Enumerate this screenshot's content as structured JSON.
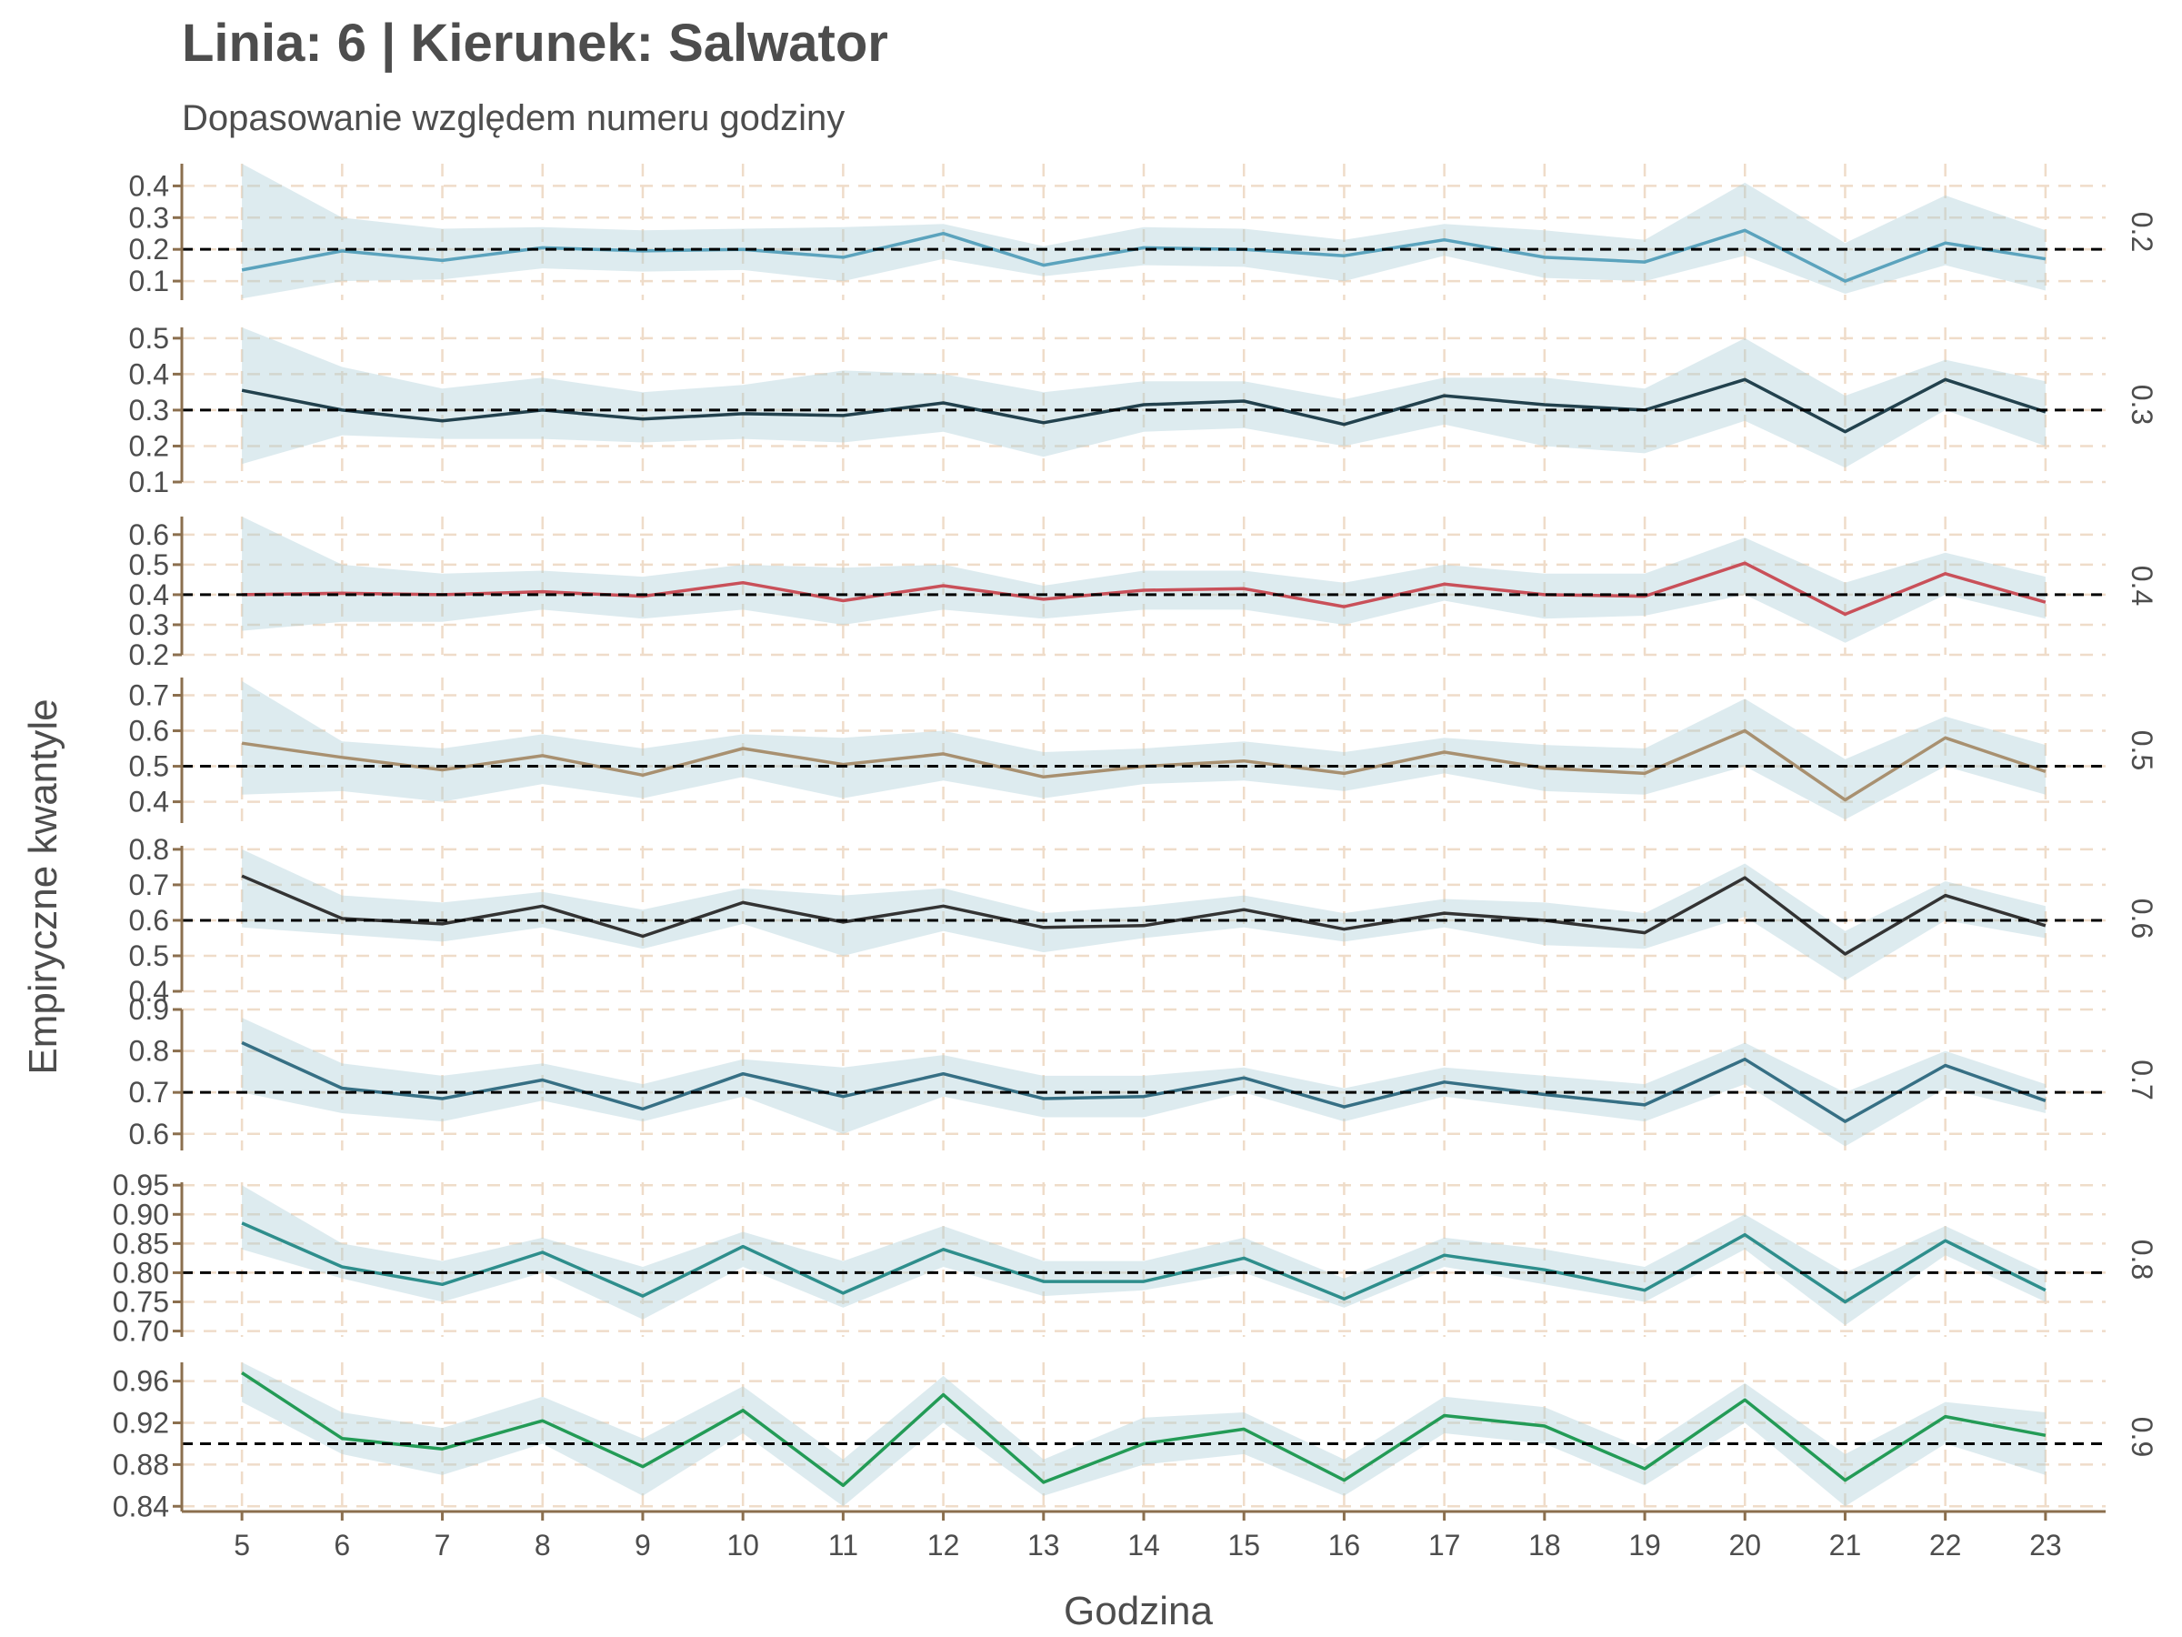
{
  "chart_data": {
    "type": "line",
    "title": "Linia: 6 | Kierunek: Salwator",
    "subtitle": "Dopasowanie względem numeru godziny",
    "xlabel": "Godzina",
    "ylabel": "Empiryczne kwantyle",
    "x": [
      5,
      6,
      7,
      8,
      9,
      10,
      11,
      12,
      13,
      14,
      15,
      16,
      17,
      18,
      19,
      20,
      21,
      22,
      23
    ],
    "xlim": [
      4.4,
      23.6
    ],
    "grid": true,
    "colors": {
      "ribbon": "#a9cdd6",
      "grid": "#efdcc9",
      "axis": "#8b6f4e",
      "reference": "#000000",
      "text": "#4d4d4d"
    },
    "panels": [
      {
        "label": "0.2",
        "reference": 0.2,
        "ylim": [
          0.04,
          0.47
        ],
        "color": "#5ba3bd",
        "yticks": [
          0.1,
          0.2,
          0.3,
          0.4
        ],
        "ytick_labels": [
          "0.1",
          "0.2",
          "0.3",
          "0.4"
        ],
        "values": [
          0.135,
          0.195,
          0.165,
          0.205,
          0.195,
          0.2,
          0.175,
          0.25,
          0.15,
          0.205,
          0.2,
          0.18,
          0.23,
          0.175,
          0.16,
          0.26,
          0.1,
          0.22,
          0.17
        ],
        "lower": [
          0.045,
          0.1,
          0.105,
          0.14,
          0.13,
          0.135,
          0.1,
          0.17,
          0.115,
          0.15,
          0.145,
          0.1,
          0.18,
          0.11,
          0.1,
          0.18,
          0.06,
          0.15,
          0.07
        ],
        "upper": [
          0.47,
          0.3,
          0.265,
          0.27,
          0.26,
          0.265,
          0.27,
          0.28,
          0.21,
          0.27,
          0.265,
          0.23,
          0.28,
          0.26,
          0.23,
          0.41,
          0.22,
          0.37,
          0.26
        ]
      },
      {
        "label": "0.3",
        "reference": 0.3,
        "ylim": [
          0.1,
          0.53
        ],
        "color": "#22414d",
        "yticks": [
          0.1,
          0.2,
          0.3,
          0.4,
          0.5
        ],
        "ytick_labels": [
          "0.1",
          "0.2",
          "0.3",
          "0.4",
          "0.5"
        ],
        "values": [
          0.355,
          0.3,
          0.27,
          0.3,
          0.275,
          0.29,
          0.285,
          0.32,
          0.265,
          0.315,
          0.325,
          0.26,
          0.34,
          0.315,
          0.3,
          0.385,
          0.24,
          0.385,
          0.295
        ],
        "lower": [
          0.15,
          0.23,
          0.22,
          0.22,
          0.21,
          0.22,
          0.21,
          0.24,
          0.17,
          0.24,
          0.25,
          0.2,
          0.26,
          0.2,
          0.18,
          0.27,
          0.14,
          0.3,
          0.2
        ],
        "upper": [
          0.53,
          0.42,
          0.36,
          0.39,
          0.35,
          0.37,
          0.41,
          0.4,
          0.35,
          0.38,
          0.38,
          0.33,
          0.39,
          0.39,
          0.36,
          0.5,
          0.34,
          0.44,
          0.38
        ]
      },
      {
        "label": "0.4",
        "reference": 0.4,
        "ylim": [
          0.2,
          0.66
        ],
        "color": "#c95059",
        "yticks": [
          0.2,
          0.3,
          0.4,
          0.5,
          0.6
        ],
        "ytick_labels": [
          "0.2",
          "0.3",
          "0.4",
          "0.5",
          "0.6"
        ],
        "values": [
          0.4,
          0.405,
          0.4,
          0.41,
          0.395,
          0.44,
          0.38,
          0.43,
          0.385,
          0.415,
          0.42,
          0.36,
          0.435,
          0.4,
          0.395,
          0.505,
          0.335,
          0.47,
          0.375
        ],
        "lower": [
          0.28,
          0.31,
          0.31,
          0.35,
          0.32,
          0.35,
          0.3,
          0.35,
          0.32,
          0.35,
          0.35,
          0.3,
          0.38,
          0.32,
          0.33,
          0.4,
          0.24,
          0.4,
          0.32
        ],
        "upper": [
          0.66,
          0.5,
          0.47,
          0.48,
          0.46,
          0.5,
          0.49,
          0.5,
          0.43,
          0.48,
          0.48,
          0.44,
          0.5,
          0.47,
          0.47,
          0.59,
          0.44,
          0.54,
          0.46
        ]
      },
      {
        "label": "0.5",
        "reference": 0.5,
        "ylim": [
          0.34,
          0.75
        ],
        "color": "#a89070",
        "yticks": [
          0.4,
          0.5,
          0.6,
          0.7
        ],
        "ytick_labels": [
          "0.4",
          "0.5",
          "0.6",
          "0.7"
        ],
        "values": [
          0.565,
          0.525,
          0.49,
          0.53,
          0.475,
          0.55,
          0.505,
          0.535,
          0.47,
          0.5,
          0.515,
          0.48,
          0.54,
          0.495,
          0.48,
          0.6,
          0.405,
          0.58,
          0.485
        ],
        "lower": [
          0.42,
          0.43,
          0.4,
          0.45,
          0.41,
          0.47,
          0.41,
          0.46,
          0.41,
          0.45,
          0.46,
          0.43,
          0.48,
          0.43,
          0.42,
          0.5,
          0.35,
          0.5,
          0.42
        ],
        "upper": [
          0.74,
          0.57,
          0.55,
          0.59,
          0.55,
          0.59,
          0.58,
          0.6,
          0.54,
          0.55,
          0.57,
          0.54,
          0.58,
          0.56,
          0.55,
          0.69,
          0.52,
          0.64,
          0.56
        ]
      },
      {
        "label": "0.6",
        "reference": 0.6,
        "ylim": [
          0.4,
          0.81
        ],
        "color": "#333333",
        "yticks": [
          0.4,
          0.5,
          0.6,
          0.7,
          0.8
        ],
        "ytick_labels": [
          "0.4",
          "0.5",
          "0.6",
          "0.7",
          "0.8"
        ],
        "values": [
          0.725,
          0.605,
          0.59,
          0.64,
          0.555,
          0.65,
          0.595,
          0.64,
          0.58,
          0.585,
          0.63,
          0.575,
          0.62,
          0.6,
          0.565,
          0.72,
          0.505,
          0.67,
          0.585
        ],
        "lower": [
          0.58,
          0.56,
          0.54,
          0.58,
          0.52,
          0.59,
          0.5,
          0.57,
          0.51,
          0.55,
          0.58,
          0.54,
          0.58,
          0.53,
          0.52,
          0.61,
          0.43,
          0.6,
          0.55
        ],
        "upper": [
          0.8,
          0.67,
          0.65,
          0.68,
          0.63,
          0.69,
          0.67,
          0.69,
          0.62,
          0.64,
          0.67,
          0.62,
          0.66,
          0.65,
          0.62,
          0.76,
          0.57,
          0.71,
          0.64
        ]
      },
      {
        "label": "0.7",
        "reference": 0.7,
        "ylim": [
          0.56,
          0.9
        ],
        "color": "#366f84",
        "yticks": [
          0.6,
          0.7,
          0.8,
          0.9
        ],
        "ytick_labels": [
          "0.6",
          "0.7",
          "0.8",
          "0.9"
        ],
        "values": [
          0.82,
          0.71,
          0.685,
          0.73,
          0.66,
          0.745,
          0.69,
          0.745,
          0.685,
          0.69,
          0.735,
          0.665,
          0.725,
          0.695,
          0.67,
          0.78,
          0.63,
          0.765,
          0.68
        ],
        "lower": [
          0.7,
          0.65,
          0.63,
          0.68,
          0.63,
          0.69,
          0.6,
          0.69,
          0.64,
          0.64,
          0.7,
          0.63,
          0.69,
          0.66,
          0.63,
          0.72,
          0.57,
          0.71,
          0.65
        ],
        "upper": [
          0.88,
          0.77,
          0.74,
          0.77,
          0.72,
          0.78,
          0.76,
          0.79,
          0.74,
          0.74,
          0.76,
          0.71,
          0.76,
          0.74,
          0.72,
          0.82,
          0.7,
          0.8,
          0.72
        ]
      },
      {
        "label": "0.8",
        "reference": 0.8,
        "ylim": [
          0.69,
          0.955
        ],
        "color": "#2e8e8c",
        "yticks": [
          0.7,
          0.75,
          0.8,
          0.85,
          0.9,
          0.95
        ],
        "ytick_labels": [
          "0.70",
          "0.75",
          "0.80",
          "0.85",
          "0.90",
          "0.95"
        ],
        "values": [
          0.885,
          0.81,
          0.78,
          0.835,
          0.76,
          0.845,
          0.765,
          0.84,
          0.785,
          0.785,
          0.825,
          0.755,
          0.83,
          0.805,
          0.77,
          0.865,
          0.75,
          0.855,
          0.77
        ],
        "lower": [
          0.84,
          0.79,
          0.75,
          0.8,
          0.72,
          0.81,
          0.74,
          0.81,
          0.76,
          0.77,
          0.8,
          0.74,
          0.81,
          0.78,
          0.75,
          0.84,
          0.71,
          0.83,
          0.75
        ],
        "upper": [
          0.95,
          0.85,
          0.82,
          0.86,
          0.81,
          0.87,
          0.82,
          0.88,
          0.82,
          0.82,
          0.86,
          0.79,
          0.86,
          0.84,
          0.81,
          0.9,
          0.8,
          0.88,
          0.8
        ]
      },
      {
        "label": "0.9",
        "reference": 0.9,
        "ylim": [
          0.835,
          0.978
        ],
        "color": "#239b56",
        "yticks": [
          0.84,
          0.88,
          0.92,
          0.96
        ],
        "ytick_labels": [
          "0.84",
          "0.88",
          "0.92",
          "0.96"
        ],
        "values": [
          0.968,
          0.905,
          0.895,
          0.922,
          0.878,
          0.932,
          0.86,
          0.947,
          0.863,
          0.9,
          0.914,
          0.865,
          0.927,
          0.917,
          0.876,
          0.942,
          0.865,
          0.926,
          0.908
        ],
        "lower": [
          0.94,
          0.89,
          0.87,
          0.9,
          0.85,
          0.91,
          0.84,
          0.92,
          0.85,
          0.88,
          0.89,
          0.85,
          0.91,
          0.9,
          0.86,
          0.92,
          0.84,
          0.9,
          0.87
        ],
        "upper": [
          0.978,
          0.93,
          0.915,
          0.945,
          0.905,
          0.955,
          0.885,
          0.965,
          0.885,
          0.925,
          0.93,
          0.885,
          0.945,
          0.935,
          0.895,
          0.958,
          0.89,
          0.94,
          0.93
        ]
      }
    ]
  }
}
